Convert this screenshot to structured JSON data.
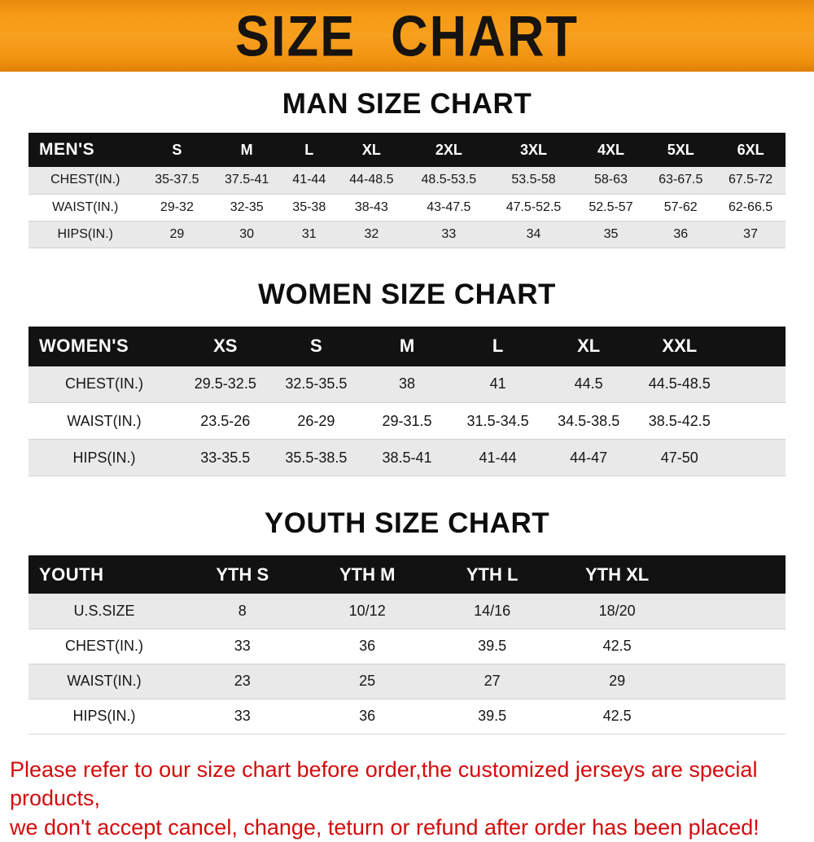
{
  "banner": {
    "title": "SIZE CHART"
  },
  "colors": {
    "banner_orange": "#F4980F",
    "banner_text": "#171310",
    "table_header_bg": "#121212",
    "table_header_text": "#FFFFFF",
    "row_stripe_gray": "#E9E9E9",
    "footer_red": "#D40B0B"
  },
  "chart_data": [
    {
      "type": "table",
      "title": "MAN SIZE CHART",
      "columns": [
        "MEN'S",
        "S",
        "M",
        "L",
        "XL",
        "2XL",
        "3XL",
        "4XL",
        "5XL",
        "6XL"
      ],
      "rows": [
        [
          "CHEST(IN.)",
          "35-37.5",
          "37.5-41",
          "41-44",
          "44-48.5",
          "48.5-53.5",
          "53.5-58",
          "58-63",
          "63-67.5",
          "67.5-72"
        ],
        [
          "WAIST(IN.)",
          "29-32",
          "32-35",
          "35-38",
          "38-43",
          "43-47.5",
          "47.5-52.5",
          "52.5-57",
          "57-62",
          "62-66.5"
        ],
        [
          "HIPS(IN.)",
          "29",
          "30",
          "31",
          "32",
          "33",
          "34",
          "35",
          "36",
          "37"
        ]
      ]
    },
    {
      "type": "table",
      "title": "WOMEN SIZE CHART",
      "columns": [
        "WOMEN'S",
        "XS",
        "S",
        "M",
        "L",
        "XL",
        "XXL"
      ],
      "rows": [
        [
          "CHEST(IN.)",
          "29.5-32.5",
          "32.5-35.5",
          "38",
          "41",
          "44.5",
          "44.5-48.5"
        ],
        [
          "WAIST(IN.)",
          "23.5-26",
          "26-29",
          "29-31.5",
          "31.5-34.5",
          "34.5-38.5",
          "38.5-42.5"
        ],
        [
          "HIPS(IN.)",
          "33-35.5",
          "35.5-38.5",
          "38.5-41",
          "41-44",
          "44-47",
          "47-50"
        ]
      ]
    },
    {
      "type": "table",
      "title": "YOUTH SIZE CHART",
      "columns": [
        "YOUTH",
        "YTH S",
        "YTH M",
        "YTH L",
        "YTH XL"
      ],
      "rows": [
        [
          "U.S.SIZE",
          "8",
          "10/12",
          "14/16",
          "18/20"
        ],
        [
          "CHEST(IN.)",
          "33",
          "36",
          "39.5",
          "42.5"
        ],
        [
          "WAIST(IN.)",
          "23",
          "25",
          "27",
          "29"
        ],
        [
          "HIPS(IN.)",
          "33",
          "36",
          "39.5",
          "42.5"
        ]
      ]
    }
  ],
  "footer": {
    "line1": "Please refer to our size chart before order,the customized jerseys are special products,",
    "line2": "we don't accept cancel, change, teturn or refund after order has been placed!"
  }
}
